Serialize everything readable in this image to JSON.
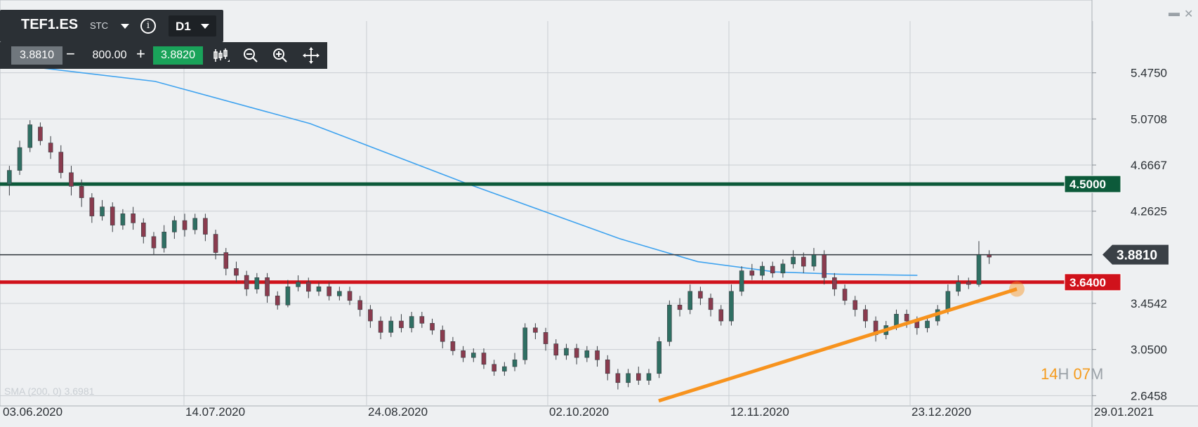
{
  "instrument": {
    "symbol": "TEF1.ES",
    "type_badge": "STC",
    "info_icon": "info-icon",
    "timeframe": "D1"
  },
  "trade_panel": {
    "sell_price": "3.8810",
    "minus_label": "−",
    "quantity": "800.00",
    "plus_label": "+",
    "buy_price": "3.8820",
    "icons": [
      "candlestick-chart-icon",
      "zoom-out-icon",
      "zoom-in-icon",
      "move-icon"
    ]
  },
  "window_controls": {
    "minimize_label": "▬",
    "close_label": "✕"
  },
  "timer": {
    "hours": "14",
    "h_label": "H",
    "minutes": "07",
    "m_label": "M"
  },
  "colors": {
    "background": "#eef0f2",
    "grid": "#c9ced3",
    "sma_line": "#3fa3ef",
    "resistance_line": "#0c5a3a",
    "support_line": "#d0121b",
    "current_price_line": "#3a4046",
    "trendline": "#f7931e",
    "bull_candle": "#2f6f63",
    "bear_candle": "#8a3b4e"
  },
  "chart_data": {
    "type": "candlestick",
    "title": "",
    "x_tick_labels": [
      "03.06.2020",
      "14.07.2020",
      "24.08.2020",
      "02.10.2020",
      "12.11.2020",
      "23.12.2020",
      "29.01.2021"
    ],
    "y_tick_labels": [
      "5.4750",
      "5.0708",
      "4.6667",
      "4.2625",
      "3.4542",
      "3.0500",
      "2.6458"
    ],
    "ylim": [
      2.6,
      5.55
    ],
    "grid": true,
    "horizontal_levels": [
      {
        "name": "resistance",
        "value": 4.5,
        "label": "4.5000"
      },
      {
        "name": "current_price",
        "value": 3.881,
        "label": "3.8810"
      },
      {
        "name": "support",
        "value": 3.64,
        "label": "3.6400"
      }
    ],
    "indicator": {
      "label": "SMA (200, 0) 3.6981"
    },
    "sma_points": [
      [
        0,
        5.52
      ],
      [
        60,
        5.52
      ],
      [
        240,
        5.4
      ],
      [
        480,
        5.03
      ],
      [
        720,
        4.51
      ],
      [
        960,
        4.02
      ],
      [
        1080,
        3.82
      ],
      [
        1200,
        3.73
      ],
      [
        1300,
        3.71
      ],
      [
        1420,
        3.7
      ]
    ],
    "trendline": {
      "from": [
        860,
        2.6
      ],
      "to": [
        1330,
        3.58
      ]
    },
    "candles": [
      [
        4.5,
        4.62,
        4.4,
        4.66
      ],
      [
        4.62,
        4.82,
        4.58,
        4.88
      ],
      [
        4.82,
        5.02,
        4.78,
        5.06
      ],
      [
        5.0,
        4.88,
        4.84,
        5.04
      ],
      [
        4.86,
        4.78,
        4.72,
        4.92
      ],
      [
        4.78,
        4.6,
        4.55,
        4.84
      ],
      [
        4.6,
        4.48,
        4.4,
        4.66
      ],
      [
        4.48,
        4.38,
        4.3,
        4.54
      ],
      [
        4.38,
        4.22,
        4.16,
        4.42
      ],
      [
        4.22,
        4.3,
        4.18,
        4.36
      ],
      [
        4.3,
        4.14,
        4.08,
        4.34
      ],
      [
        4.14,
        4.24,
        4.1,
        4.28
      ],
      [
        4.24,
        4.16,
        4.1,
        4.3
      ],
      [
        4.16,
        4.04,
        3.98,
        4.2
      ],
      [
        4.04,
        3.94,
        3.88,
        4.08
      ],
      [
        3.94,
        4.08,
        3.9,
        4.14
      ],
      [
        4.08,
        4.18,
        4.02,
        4.22
      ],
      [
        4.18,
        4.1,
        4.04,
        4.24
      ],
      [
        4.1,
        4.2,
        4.06,
        4.24
      ],
      [
        4.2,
        4.06,
        4.0,
        4.24
      ],
      [
        4.06,
        3.9,
        3.84,
        4.1
      ],
      [
        3.9,
        3.76,
        3.7,
        3.94
      ],
      [
        3.76,
        3.7,
        3.64,
        3.82
      ],
      [
        3.7,
        3.58,
        3.52,
        3.74
      ],
      [
        3.58,
        3.68,
        3.54,
        3.72
      ],
      [
        3.68,
        3.52,
        3.46,
        3.72
      ],
      [
        3.52,
        3.44,
        3.4,
        3.56
      ],
      [
        3.44,
        3.6,
        3.42,
        3.66
      ],
      [
        3.6,
        3.64,
        3.56,
        3.7
      ],
      [
        3.64,
        3.56,
        3.5,
        3.68
      ],
      [
        3.56,
        3.6,
        3.52,
        3.64
      ],
      [
        3.6,
        3.52,
        3.48,
        3.64
      ],
      [
        3.52,
        3.56,
        3.48,
        3.6
      ],
      [
        3.56,
        3.48,
        3.44,
        3.6
      ],
      [
        3.48,
        3.4,
        3.34,
        3.52
      ],
      [
        3.4,
        3.3,
        3.24,
        3.44
      ],
      [
        3.3,
        3.2,
        3.14,
        3.34
      ],
      [
        3.2,
        3.3,
        3.16,
        3.34
      ],
      [
        3.3,
        3.24,
        3.2,
        3.36
      ],
      [
        3.24,
        3.34,
        3.2,
        3.38
      ],
      [
        3.34,
        3.28,
        3.24,
        3.38
      ],
      [
        3.28,
        3.22,
        3.18,
        3.32
      ],
      [
        3.22,
        3.12,
        3.06,
        3.26
      ],
      [
        3.12,
        3.04,
        3.0,
        3.16
      ],
      [
        3.04,
        2.98,
        2.94,
        3.08
      ],
      [
        2.98,
        3.02,
        2.94,
        3.06
      ],
      [
        3.02,
        2.92,
        2.88,
        3.06
      ],
      [
        2.92,
        2.86,
        2.82,
        2.96
      ],
      [
        2.86,
        2.9,
        2.82,
        2.94
      ],
      [
        2.9,
        2.96,
        2.86,
        3.02
      ],
      [
        2.96,
        3.24,
        2.92,
        3.28
      ],
      [
        3.24,
        3.2,
        3.14,
        3.28
      ],
      [
        3.2,
        3.1,
        3.04,
        3.24
      ],
      [
        3.1,
        3.0,
        2.96,
        3.14
      ],
      [
        3.0,
        3.06,
        2.96,
        3.1
      ],
      [
        3.06,
        2.98,
        2.92,
        3.1
      ],
      [
        2.98,
        3.04,
        2.94,
        3.08
      ],
      [
        3.04,
        2.96,
        2.9,
        3.08
      ],
      [
        2.96,
        2.84,
        2.78,
        3.0
      ],
      [
        2.84,
        2.76,
        2.7,
        2.88
      ],
      [
        2.76,
        2.84,
        2.72,
        2.88
      ],
      [
        2.84,
        2.78,
        2.74,
        2.9
      ],
      [
        2.78,
        2.84,
        2.74,
        2.88
      ],
      [
        2.84,
        3.12,
        2.8,
        3.16
      ],
      [
        3.12,
        3.44,
        3.08,
        3.48
      ],
      [
        3.44,
        3.4,
        3.34,
        3.5
      ],
      [
        3.4,
        3.56,
        3.36,
        3.62
      ],
      [
        3.56,
        3.5,
        3.44,
        3.6
      ],
      [
        3.5,
        3.4,
        3.34,
        3.54
      ],
      [
        3.4,
        3.3,
        3.26,
        3.44
      ],
      [
        3.3,
        3.56,
        3.26,
        3.62
      ],
      [
        3.56,
        3.74,
        3.52,
        3.78
      ],
      [
        3.74,
        3.7,
        3.66,
        3.8
      ],
      [
        3.7,
        3.78,
        3.66,
        3.82
      ],
      [
        3.78,
        3.72,
        3.68,
        3.82
      ],
      [
        3.72,
        3.8,
        3.68,
        3.84
      ],
      [
        3.8,
        3.86,
        3.76,
        3.92
      ],
      [
        3.86,
        3.78,
        3.72,
        3.9
      ],
      [
        3.78,
        3.88,
        3.74,
        3.94
      ],
      [
        3.88,
        3.68,
        3.62,
        3.92
      ],
      [
        3.68,
        3.58,
        3.52,
        3.72
      ],
      [
        3.58,
        3.48,
        3.44,
        3.62
      ],
      [
        3.48,
        3.4,
        3.34,
        3.52
      ],
      [
        3.4,
        3.3,
        3.24,
        3.44
      ],
      [
        3.3,
        3.18,
        3.12,
        3.34
      ],
      [
        3.18,
        3.26,
        3.14,
        3.3
      ],
      [
        3.26,
        3.36,
        3.22,
        3.4
      ],
      [
        3.36,
        3.3,
        3.24,
        3.4
      ],
      [
        3.3,
        3.24,
        3.18,
        3.34
      ],
      [
        3.24,
        3.3,
        3.2,
        3.34
      ],
      [
        3.3,
        3.4,
        3.26,
        3.44
      ],
      [
        3.4,
        3.56,
        3.36,
        3.62
      ],
      [
        3.56,
        3.64,
        3.52,
        3.7
      ],
      [
        3.64,
        3.62,
        3.58,
        3.68
      ],
      [
        3.62,
        3.88,
        3.6,
        4.0
      ],
      [
        3.88,
        3.86,
        3.8,
        3.92
      ]
    ]
  }
}
